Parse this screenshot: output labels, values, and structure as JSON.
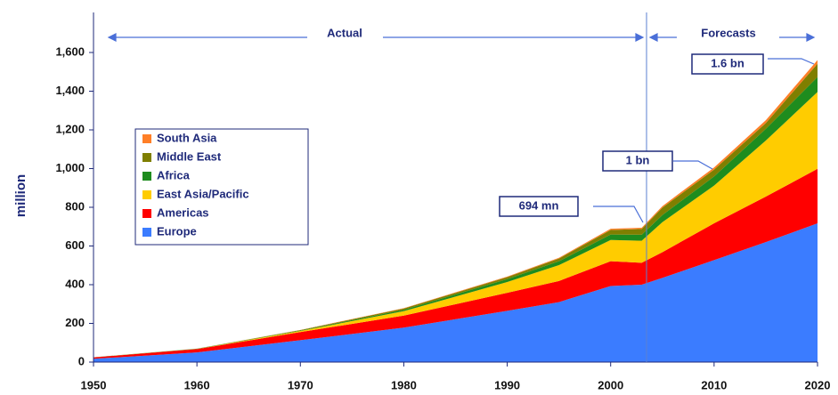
{
  "chart_data": {
    "type": "stacked_area",
    "y_label": "million",
    "annotations": [
      "Actual",
      "Forecasts",
      "1.6 bn",
      "1 bn",
      "694 mn"
    ],
    "x": [
      1950,
      1960,
      1970,
      1980,
      1990,
      1995,
      2000,
      2003,
      2005,
      2010,
      2015,
      2020
    ],
    "series": [
      {
        "name": "Europe",
        "color": "#3b7cff",
        "values": [
          17,
          50,
          113,
          178,
          265,
          310,
          393,
          400,
          435,
          527,
          620,
          717
        ]
      },
      {
        "name": "Americas",
        "color": "#ff0000",
        "values": [
          7,
          17,
          42,
          62,
          93,
          109,
          128,
          113,
          133,
          190,
          235,
          282
        ]
      },
      {
        "name": "East Asia/Pacific",
        "color": "#ffcc00",
        "values": [
          0.2,
          1,
          6,
          23,
          56,
          82,
          110,
          114,
          155,
          195,
          290,
          397
        ]
      },
      {
        "name": "Africa",
        "color": "#1e8c1e",
        "values": [
          0.5,
          0.8,
          2.4,
          7,
          15,
          20,
          28,
          31,
          37,
          47,
          60,
          77
        ]
      },
      {
        "name": "Middle East",
        "color": "#7f7f00",
        "values": [
          0.2,
          0.6,
          1.9,
          7,
          10,
          14,
          24,
          30,
          38,
          36,
          30,
          69
        ]
      },
      {
        "name": "South Asia",
        "color": "#ff7f27",
        "values": [
          0.1,
          0.2,
          0.9,
          2,
          3,
          4,
          6,
          6,
          8,
          11,
          15,
          19
        ]
      }
    ],
    "xlim": [
      1950,
      2020
    ],
    "xticks": [
      1950,
      1960,
      1970,
      1980,
      1990,
      2000,
      2010,
      2020
    ],
    "ylim": [
      0,
      1800
    ],
    "yticks": [
      0,
      200,
      400,
      600,
      800,
      {
        "value": 1000,
        "label": "1,000"
      },
      {
        "value": 1200,
        "label": "1,200"
      },
      {
        "value": 1400,
        "label": "1,400"
      },
      {
        "value": 1600,
        "label": "1,600"
      }
    ],
    "legend": "upper left"
  }
}
